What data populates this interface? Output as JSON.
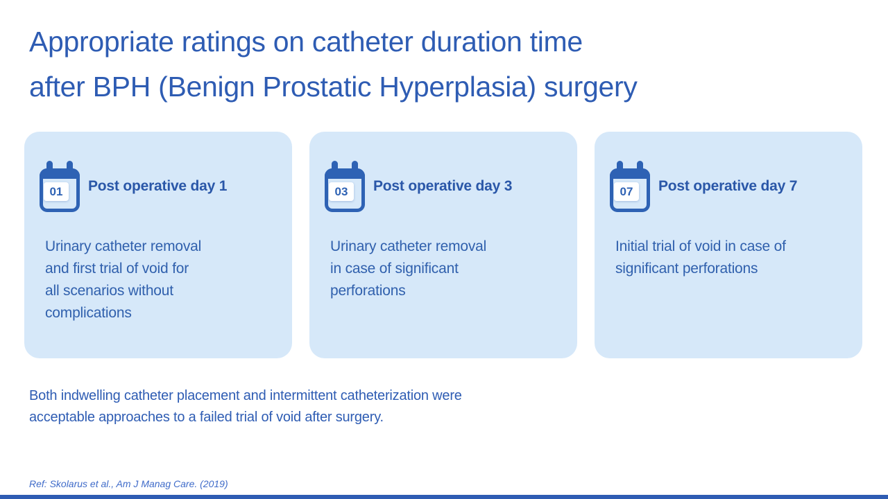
{
  "title_lines": [
    "Appropriate ratings on catheter duration time",
    "after BPH (Benign Prostatic Hyperplasia) surgery"
  ],
  "cards": [
    {
      "badge": "01",
      "icon": "calendar-icon",
      "heading": "Post operative day 1",
      "body_lines": [
        "Urinary catheter removal",
        "and first trial of void for",
        "all scenarios without",
        "complications"
      ]
    },
    {
      "badge": "03",
      "icon": "calendar-icon",
      "heading": "Post operative day 3",
      "body_lines": [
        "Urinary catheter removal",
        "in case of significant",
        "perforations"
      ]
    },
    {
      "badge": "07",
      "icon": "calendar-icon",
      "heading": "Post operative day 7",
      "body_lines": [
        "Initial trial of void in case of",
        "significant perforations"
      ]
    }
  ],
  "note_lines": [
    "Both indwelling catheter placement and intermittent catheterization were",
    "acceptable approaches to a failed trial of void after surgery."
  ],
  "reference": "Ref: Skolarus et al., Am J Manag Care. (2019)",
  "colors": {
    "title": "#2E5CB3",
    "card_bg": "#D6E8F9",
    "heading": "#2A57A8",
    "body": "#3060AD",
    "icon": "#2E62B4",
    "note": "#2E5CB3",
    "ref": "#3F6BC9",
    "bar": "#2E5CB3"
  }
}
